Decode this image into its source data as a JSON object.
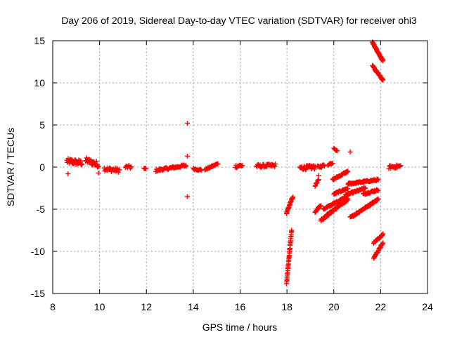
{
  "chart_data": {
    "type": "scatter",
    "title": "Day 206 of 2019, Sidereal Day-to-day VTEC variation (SDTVAR) for receiver ohi3",
    "xlabel": "GPS time / hours",
    "ylabel": "SDTVAR / TECUs",
    "xlim": [
      8,
      24
    ],
    "ylim": [
      -15,
      15
    ],
    "xticks": [
      "8",
      "10",
      "12",
      "14",
      "16",
      "18",
      "20",
      "22",
      "24"
    ],
    "yticks": [
      "-15",
      "-10",
      "-5",
      "0",
      "5",
      "10",
      "15"
    ],
    "grid": true,
    "marker": "+",
    "color": "#ff0000",
    "segments": [
      {
        "x0": 8.6,
        "x1": 9.25,
        "y0": 0.7,
        "y1": 0.5,
        "spread": 0.35,
        "step": 0.02
      },
      {
        "x0": 9.4,
        "x1": 9.95,
        "y0": 0.8,
        "y1": 0.3,
        "spread": 0.35,
        "step": 0.02
      },
      {
        "x0": 10.2,
        "x1": 10.85,
        "y0": -0.2,
        "y1": -0.4,
        "spread": 0.25,
        "step": 0.025
      },
      {
        "x0": 11.1,
        "x1": 11.35,
        "y0": 0.0,
        "y1": 0.0,
        "spread": 0.2,
        "step": 0.03
      },
      {
        "x0": 11.9,
        "x1": 11.98,
        "y0": -0.2,
        "y1": -0.2,
        "spread": 0.1,
        "step": 0.03
      },
      {
        "x0": 12.4,
        "x1": 13.7,
        "y0": -0.4,
        "y1": 0.2,
        "spread": 0.15,
        "step": 0.025
      },
      {
        "x0": 14.0,
        "x1": 14.35,
        "y0": -0.2,
        "y1": -0.35,
        "spread": 0.1,
        "step": 0.03
      },
      {
        "x0": 14.5,
        "x1": 15.05,
        "y0": -0.3,
        "y1": 0.4,
        "spread": 0.1,
        "step": 0.025
      },
      {
        "x0": 15.8,
        "x1": 16.1,
        "y0": 0.1,
        "y1": 0.2,
        "spread": 0.2,
        "step": 0.025
      },
      {
        "x0": 16.7,
        "x1": 17.5,
        "y0": 0.1,
        "y1": 0.2,
        "spread": 0.2,
        "step": 0.025
      },
      {
        "x0": 17.98,
        "x1": 18.25,
        "y0": -5.5,
        "y1": -3.5,
        "spread": 0.1,
        "step": 0.01
      },
      {
        "x0": 17.98,
        "x1": 18.2,
        "y0": -13.8,
        "y1": -7.5,
        "spread": 0.1,
        "step": 0.006
      },
      {
        "x0": 18.55,
        "x1": 19.2,
        "y0": -0.1,
        "y1": 0.0,
        "spread": 0.25,
        "step": 0.02
      },
      {
        "x0": 19.2,
        "x1": 19.35,
        "y0": -2.2,
        "y1": -1.5,
        "spread": 0.1,
        "step": 0.02
      },
      {
        "x0": 19.3,
        "x1": 19.6,
        "y0": 0.0,
        "y1": 0.2,
        "spread": 0.15,
        "step": 0.025
      },
      {
        "x0": 19.75,
        "x1": 19.95,
        "y0": 0.3,
        "y1": 0.5,
        "spread": 0.1,
        "step": 0.03
      },
      {
        "x0": 19.2,
        "x1": 19.45,
        "y0": -5.3,
        "y1": -4.5,
        "spread": 0.1,
        "step": 0.02
      },
      {
        "x0": 19.45,
        "x1": 20.6,
        "y0": -6.3,
        "y1": -3.8,
        "spread": 0.15,
        "step": 0.015
      },
      {
        "x0": 19.55,
        "x1": 20.55,
        "y0": -5.0,
        "y1": -3.5,
        "spread": 0.1,
        "step": 0.02
      },
      {
        "x0": 19.95,
        "x1": 20.6,
        "y0": -1.5,
        "y1": -0.5,
        "spread": 0.1,
        "step": 0.02
      },
      {
        "x0": 20.0,
        "x1": 20.6,
        "y0": -3.2,
        "y1": -2.5,
        "spread": 0.1,
        "step": 0.02
      },
      {
        "x0": 20.0,
        "x1": 20.15,
        "y0": 2.2,
        "y1": 1.9,
        "spread": 0.05,
        "step": 0.03
      },
      {
        "x0": 20.5,
        "x1": 21.35,
        "y0": -3.3,
        "y1": -2.5,
        "spread": 0.1,
        "step": 0.02
      },
      {
        "x0": 20.6,
        "x1": 21.9,
        "y0": -2.0,
        "y1": -1.5,
        "spread": 0.1,
        "step": 0.02
      },
      {
        "x0": 20.7,
        "x1": 21.9,
        "y0": -6.0,
        "y1": -3.8,
        "spread": 0.1,
        "step": 0.015
      },
      {
        "x0": 21.25,
        "x1": 21.9,
        "y0": -3.2,
        "y1": -2.7,
        "spread": 0.1,
        "step": 0.02
      },
      {
        "x0": 21.7,
        "x1": 22.1,
        "y0": -9.0,
        "y1": -8.0,
        "spread": 0.1,
        "step": 0.02
      },
      {
        "x0": 21.7,
        "x1": 22.1,
        "y0": -10.8,
        "y1": -9.0,
        "spread": 0.1,
        "step": 0.015
      },
      {
        "x0": 21.65,
        "x1": 22.1,
        "y0": 14.8,
        "y1": 12.6,
        "spread": 0.1,
        "step": 0.01
      },
      {
        "x0": 21.65,
        "x1": 22.1,
        "y0": 12.0,
        "y1": 10.3,
        "spread": 0.1,
        "step": 0.012
      },
      {
        "x0": 22.35,
        "x1": 22.85,
        "y0": 0.0,
        "y1": 0.1,
        "spread": 0.2,
        "step": 0.025
      }
    ],
    "points": [
      {
        "x": 13.75,
        "y": 5.2
      },
      {
        "x": 13.75,
        "y": 1.3
      },
      {
        "x": 13.75,
        "y": -3.5
      },
      {
        "x": 20.7,
        "y": 1.8
      },
      {
        "x": 8.65,
        "y": -0.8
      },
      {
        "x": 9.95,
        "y": -0.7
      },
      {
        "x": 19.35,
        "y": -1.0
      }
    ]
  }
}
